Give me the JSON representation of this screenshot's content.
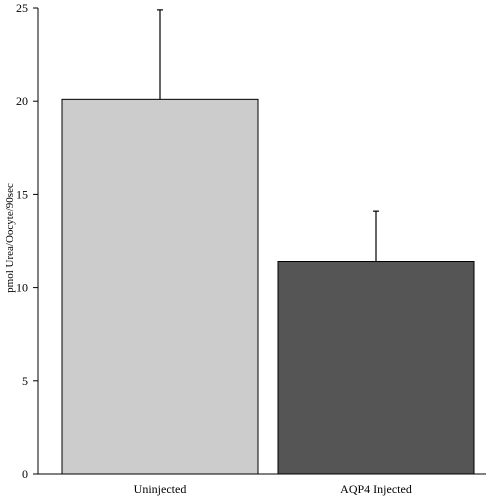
{
  "chart_data": {
    "type": "bar",
    "title": "",
    "xlabel": "",
    "ylabel": "pmol Urea/Oocyte/90sec",
    "categories": [
      "Uninjected",
      "AQP4 Injected"
    ],
    "values": [
      20.1,
      11.4
    ],
    "error_upper": [
      4.8,
      2.7
    ],
    "ylim": [
      0,
      25
    ],
    "yticks": [
      0,
      5,
      10,
      15,
      20,
      25
    ],
    "colors": [
      "#cccccc",
      "#555555"
    ],
    "edge_color": "#000000",
    "grid": false,
    "legend": "none"
  }
}
